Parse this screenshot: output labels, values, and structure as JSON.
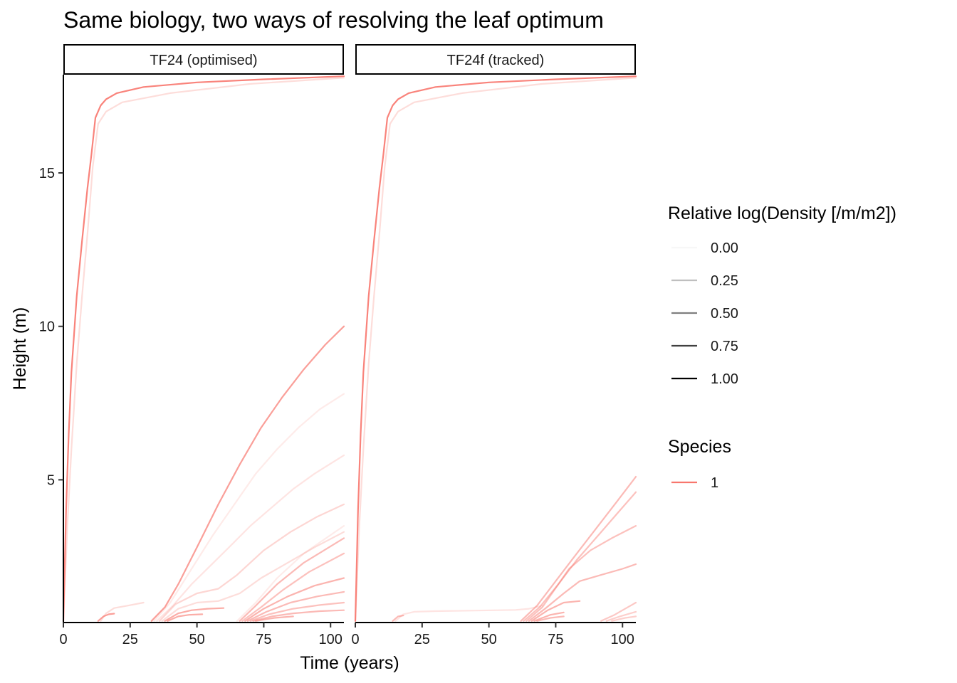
{
  "chart_data": {
    "type": "line",
    "title": "Same biology, two ways of resolving the leaf optimum",
    "xlabel": "Time (years)",
    "ylabel": "Height (m)",
    "xlim": [
      0,
      105
    ],
    "ylim": [
      0.35,
      18.2
    ],
    "x_ticks": [
      0,
      25,
      50,
      75,
      100
    ],
    "y_ticks": [
      5,
      10,
      15
    ],
    "grid": false,
    "series_color": "#F8766D",
    "panels": [
      {
        "strip": "TF24 (optimised)",
        "cohorts": [
          {
            "x": [
              0,
              1,
              2,
              3,
              5,
              7,
              9,
              10.5,
              12,
              14,
              16,
              20,
              30,
              50,
              75,
              105
            ],
            "y": [
              0.4,
              4.0,
              6.5,
              8.5,
              11.0,
              12.8,
              14.5,
              15.6,
              16.8,
              17.2,
              17.4,
              17.6,
              17.8,
              17.95,
              18.05,
              18.15
            ],
            "alpha": 0.9
          },
          {
            "x": [
              0,
              1.5,
              3,
              5,
              7,
              9,
              11,
              13,
              16,
              22,
              40,
              70,
              105
            ],
            "y": [
              0.4,
              3.5,
              6.0,
              8.8,
              11.0,
              13.0,
              15.2,
              16.6,
              17.0,
              17.3,
              17.6,
              17.9,
              18.1
            ],
            "alpha": 0.25
          },
          {
            "x": [
              33,
              38,
              43,
              50,
              58,
              66,
              74,
              82,
              90,
              98,
              105
            ],
            "y": [
              0.4,
              0.85,
              1.6,
              2.8,
              4.2,
              5.5,
              6.7,
              7.7,
              8.6,
              9.4,
              10.0
            ],
            "alpha": 0.7
          },
          {
            "x": [
              34,
              40,
              48,
              56,
              64,
              72,
              80,
              88,
              96,
              105
            ],
            "y": [
              0.4,
              1.0,
              2.1,
              3.2,
              4.2,
              5.2,
              6.0,
              6.7,
              7.3,
              7.8
            ],
            "alpha": 0.15
          },
          {
            "x": [
              35,
              41,
              48,
              55,
              62,
              70,
              78,
              86,
              94,
              105
            ],
            "y": [
              0.4,
              0.9,
              1.6,
              2.2,
              2.8,
              3.5,
              4.1,
              4.7,
              5.2,
              5.8
            ],
            "alpha": 0.2
          },
          {
            "x": [
              36,
              42,
              50,
              58,
              65,
              75,
              85,
              95,
              105
            ],
            "y": [
              0.4,
              0.95,
              1.3,
              1.45,
              1.9,
              2.7,
              3.3,
              3.8,
              4.2
            ],
            "alpha": 0.3
          },
          {
            "x": [
              37,
              43,
              50,
              58,
              66,
              74,
              84,
              94,
              105
            ],
            "y": [
              0.4,
              0.8,
              1.0,
              1.05,
              1.3,
              1.8,
              2.3,
              2.8,
              3.3
            ],
            "alpha": 0.25
          },
          {
            "x": [
              38,
              43,
              48,
              54,
              60
            ],
            "y": [
              0.4,
              0.65,
              0.75,
              0.8,
              0.82
            ],
            "alpha": 0.6
          },
          {
            "x": [
              39,
              43,
              47,
              52
            ],
            "y": [
              0.4,
              0.55,
              0.6,
              0.62
            ],
            "alpha": 0.6
          },
          {
            "x": [
              14,
              16,
              19,
              24,
              30
            ],
            "y": [
              0.4,
              0.65,
              0.82,
              0.9,
              1.0
            ],
            "alpha": 0.25
          },
          {
            "x": [
              13,
              15,
              17,
              19
            ],
            "y": [
              0.4,
              0.55,
              0.62,
              0.64
            ],
            "alpha": 0.7
          },
          {
            "x": [
              66,
              72,
              80,
              90,
              105
            ],
            "y": [
              0.4,
              0.9,
              1.6,
              2.3,
              3.1
            ],
            "alpha": 0.5
          },
          {
            "x": [
              67,
              74,
              82,
              92,
              105
            ],
            "y": [
              0.4,
              0.85,
              1.4,
              2.0,
              2.6
            ],
            "alpha": 0.45
          },
          {
            "x": [
              68,
              75,
              84,
              94,
              105
            ],
            "y": [
              0.4,
              0.8,
              1.2,
              1.55,
              1.8
            ],
            "alpha": 0.55
          },
          {
            "x": [
              69,
              76,
              85,
              95,
              105
            ],
            "y": [
              0.4,
              0.7,
              1.0,
              1.2,
              1.35
            ],
            "alpha": 0.5
          },
          {
            "x": [
              70,
              77,
              86,
              96,
              105
            ],
            "y": [
              0.4,
              0.62,
              0.8,
              0.92,
              1.0
            ],
            "alpha": 0.45
          },
          {
            "x": [
              71,
              78,
              86,
              96,
              105
            ],
            "y": [
              0.4,
              0.55,
              0.65,
              0.72,
              0.75
            ],
            "alpha": 0.5
          },
          {
            "x": [
              72,
              79,
              86
            ],
            "y": [
              0.4,
              0.5,
              0.55
            ],
            "alpha": 0.55
          },
          {
            "x": [
              65,
              72,
              80,
              90,
              105
            ],
            "y": [
              0.4,
              1.0,
              1.8,
              2.6,
              3.5
            ],
            "alpha": 0.15
          }
        ]
      },
      {
        "strip": "TF24f (tracked)",
        "cohorts": [
          {
            "x": [
              0,
              1,
              2,
              3,
              5,
              7,
              9,
              10.5,
              12,
              14,
              16,
              20,
              30,
              50,
              75,
              105
            ],
            "y": [
              0.4,
              4.0,
              6.5,
              8.5,
              11.0,
              12.8,
              14.5,
              15.6,
              16.8,
              17.2,
              17.4,
              17.6,
              17.8,
              17.95,
              18.05,
              18.15
            ],
            "alpha": 0.9
          },
          {
            "x": [
              0,
              1.5,
              3,
              5,
              7,
              9,
              11,
              13,
              16,
              22,
              40,
              70,
              105
            ],
            "y": [
              0.4,
              3.5,
              6.0,
              8.8,
              11.0,
              13.0,
              15.2,
              16.6,
              17.0,
              17.3,
              17.6,
              17.9,
              18.1
            ],
            "alpha": 0.25
          },
          {
            "x": [
              15,
              18,
              22,
              30,
              45,
              60,
              65,
              70
            ],
            "y": [
              0.4,
              0.62,
              0.7,
              0.72,
              0.74,
              0.76,
              0.8,
              0.9
            ],
            "alpha": 0.2
          },
          {
            "x": [
              14,
              16,
              18
            ],
            "y": [
              0.4,
              0.55,
              0.58
            ],
            "alpha": 0.5
          },
          {
            "x": [
              62,
              68,
              75,
              82,
              90,
              98,
              105
            ],
            "y": [
              0.4,
              0.9,
              1.7,
              2.5,
              3.4,
              4.3,
              5.1
            ],
            "alpha": 0.5
          },
          {
            "x": [
              63,
              69,
              76,
              83,
              91,
              99,
              105
            ],
            "y": [
              0.4,
              0.85,
              1.6,
              2.4,
              3.2,
              4.0,
              4.6
            ],
            "alpha": 0.45
          },
          {
            "x": [
              64,
              70,
              76,
              80,
              88,
              96,
              105
            ],
            "y": [
              0.4,
              0.85,
              1.6,
              2.1,
              2.7,
              3.1,
              3.5
            ],
            "alpha": 0.45
          },
          {
            "x": [
              65,
              71,
              78,
              84,
              92,
              100,
              105
            ],
            "y": [
              0.4,
              0.8,
              1.3,
              1.7,
              1.9,
              2.1,
              2.25
            ],
            "alpha": 0.5
          },
          {
            "x": [
              66,
              72,
              78,
              84
            ],
            "y": [
              0.4,
              0.75,
              1.0,
              1.05
            ],
            "alpha": 0.55
          },
          {
            "x": [
              67,
              73,
              78
            ],
            "y": [
              0.4,
              0.6,
              0.68
            ],
            "alpha": 0.55
          },
          {
            "x": [
              68,
              73,
              78
            ],
            "y": [
              0.4,
              0.5,
              0.55
            ],
            "alpha": 0.5
          },
          {
            "x": [
              92,
              97,
              101,
              105
            ],
            "y": [
              0.4,
              0.6,
              0.8,
              1.0
            ],
            "alpha": 0.4
          },
          {
            "x": [
              94,
              99,
              105
            ],
            "y": [
              0.4,
              0.55,
              0.7
            ],
            "alpha": 0.35
          },
          {
            "x": [
              96,
              101,
              105
            ],
            "y": [
              0.4,
              0.5,
              0.55
            ],
            "alpha": 0.35
          }
        ]
      }
    ],
    "legend": {
      "placement": "right",
      "alpha_title": "Relative log(Density [/m/m2])",
      "alpha_entries": [
        {
          "label": "0.00",
          "alpha": 0.0
        },
        {
          "label": "0.25",
          "alpha": 0.25
        },
        {
          "label": "0.50",
          "alpha": 0.5
        },
        {
          "label": "0.75",
          "alpha": 0.75
        },
        {
          "label": "1.00",
          "alpha": 1.0
        }
      ],
      "color_title": "Species",
      "color_entries": [
        {
          "label": "1",
          "color": "#F8766D"
        }
      ]
    }
  }
}
